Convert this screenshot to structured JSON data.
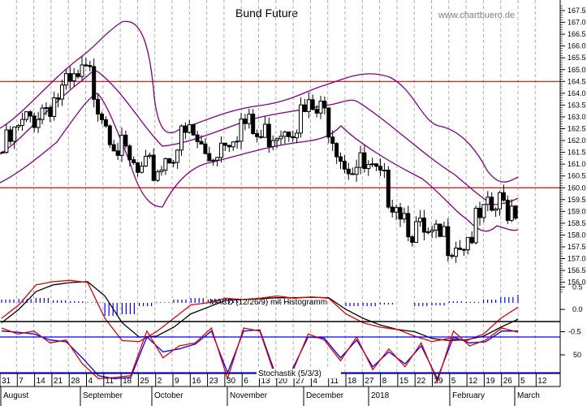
{
  "header": {
    "title": "Bund Future",
    "watermark": "www.chartbuero.de"
  },
  "colors": {
    "resistance_lines": "#e00000",
    "bollinger": "#800080",
    "macd_line": "#e00000",
    "signal_line": "#000000",
    "histogram": "#0000ff",
    "stoch_k": "#e00000",
    "stoch_d": "#0000ff",
    "grid": "#b0b0b0"
  },
  "labels": {
    "macd": "MACD (12/26/9) mit Histogramm",
    "stoch": "Stochastik (5/3/3)"
  },
  "chart_data": [
    {
      "type": "candlestick",
      "title": "Bund Future",
      "ylabel": "",
      "ylim": [
        155.6,
        167.7
      ],
      "y_ticks": [
        "167.5",
        "167.0",
        "166.5",
        "166.0",
        "165.5",
        "165.0",
        "164.5",
        "164.0",
        "163.5",
        "163.0",
        "162.5",
        "162.0",
        "161.5",
        "161.0",
        "160.5",
        "160.0",
        "159.5",
        "159.0",
        "158.5",
        "158.0",
        "157.5",
        "157.0",
        "156.5",
        "156.0"
      ],
      "horizontal_lines": [
        164.5,
        160.0
      ],
      "overlays": [
        "Bollinger Bands (upper, middle, lower)"
      ],
      "x_ticks": [
        "31",
        "7",
        "14",
        "21",
        "28",
        "4",
        "11",
        "18",
        "25",
        "2",
        "9",
        "16",
        "23",
        "30",
        "6",
        "13",
        "20",
        "27",
        "4",
        "11",
        "18",
        "27",
        "8",
        "15",
        "22",
        "29",
        "5",
        "12",
        "19",
        "26",
        "5",
        "12"
      ],
      "month_labels": [
        "August",
        "September",
        "October",
        "November",
        "December",
        "2018",
        "February",
        "March"
      ],
      "close_approx": [
        161.9,
        162.8,
        163.6,
        164.2,
        164.6,
        165.2,
        163.5,
        161.8,
        160.8,
        161.2,
        162.1,
        162.7,
        161.6,
        162.6,
        163.2,
        162.4,
        163.0,
        163.3,
        163.6,
        163.4,
        161.6,
        161.2,
        160.6,
        160.0,
        158.7,
        158.0,
        158.3,
        158.2,
        159.0,
        159.6,
        159.7
      ]
    },
    {
      "type": "line",
      "title": "MACD (12/26/9) mit Histogramm",
      "ylim": [
        -1.0,
        0.9
      ],
      "y_ticks": [
        "0.5",
        "0.0",
        "-0.5"
      ],
      "series": [
        {
          "name": "MACD",
          "values": [
            -0.2,
            0.1,
            0.55,
            0.62,
            0.65,
            0.6,
            -0.2,
            -0.7,
            -0.72,
            -0.5,
            -0.2,
            0.1,
            0.15,
            0.25,
            0.22,
            0.25,
            0.3,
            0.25,
            0.28,
            0.25,
            -0.1,
            -0.3,
            -0.4,
            -0.45,
            -0.6,
            -0.72,
            -0.65,
            -0.7,
            -0.55,
            -0.2,
            0.05
          ]
        },
        {
          "name": "Signal",
          "values": [
            -0.3,
            0.0,
            0.4,
            0.55,
            0.6,
            0.62,
            0.3,
            -0.3,
            -0.62,
            -0.6,
            -0.4,
            -0.1,
            0.05,
            0.2,
            0.22,
            0.24,
            0.26,
            0.26,
            0.27,
            0.26,
            0.0,
            -0.2,
            -0.35,
            -0.45,
            -0.5,
            -0.65,
            -0.7,
            -0.68,
            -0.6,
            -0.4,
            -0.22
          ]
        },
        {
          "name": "Histogram",
          "values": [
            0.1,
            0.12,
            0.15,
            0.08,
            0.05,
            0.02,
            -0.4,
            -0.35,
            -0.1,
            0.02,
            0.1,
            0.15,
            0.1,
            0.05,
            0.0,
            0.01,
            0.02,
            0.0,
            0.01,
            0.0,
            -0.1,
            -0.1,
            -0.05,
            0.0,
            -0.1,
            -0.08,
            0.05,
            0.03,
            0.1,
            0.18,
            0.25
          ]
        }
      ]
    },
    {
      "type": "line",
      "title": "Stochastik (5/3/3)",
      "ylim": [
        0,
        100
      ],
      "y_ticks": [
        "50"
      ],
      "horizontal_lines": [
        80,
        20
      ],
      "series": [
        {
          "name": "%K",
          "values": [
            95,
            85,
            90,
            70,
            75,
            35,
            10,
            12,
            15,
            90,
            45,
            65,
            70,
            95,
            10,
            95,
            90,
            10,
            20,
            85,
            75,
            40,
            80,
            25,
            60,
            30,
            70,
            5,
            90,
            65,
            75,
            95,
            88
          ]
        },
        {
          "name": "%D",
          "values": [
            90,
            88,
            85,
            75,
            72,
            45,
            15,
            10,
            12,
            80,
            55,
            60,
            68,
            90,
            20,
            90,
            92,
            15,
            25,
            80,
            78,
            45,
            75,
            30,
            55,
            35,
            65,
            10,
            80,
            70,
            72,
            90,
            90
          ]
        }
      ]
    }
  ]
}
